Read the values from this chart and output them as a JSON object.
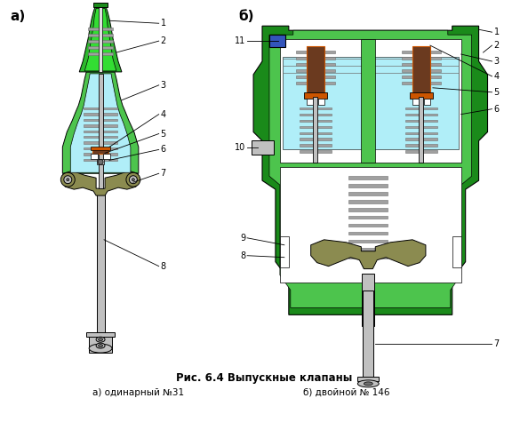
{
  "title": "Рис. 6.4 Выпускные клапаны",
  "subtitle_a": "а) одинарный №31",
  "subtitle_b": "б) двойной № 146",
  "label_a": "а)",
  "label_b": "б)",
  "bg_color": "#ffffff",
  "green_dark": "#1a8a1a",
  "green_light": "#4dc44d",
  "green_bright": "#33dd33",
  "cyan_light": "#b0eef8",
  "gray_body": "#c0c0c0",
  "gray_dark": "#707070",
  "gray_medium": "#a0a0a0",
  "olive": "#8b8b50",
  "brown": "#6b3a1f",
  "orange": "#cc5500",
  "white": "#ffffff",
  "blue": "#3355bb",
  "text_color": "#000000",
  "green_mid": "#2db82d"
}
